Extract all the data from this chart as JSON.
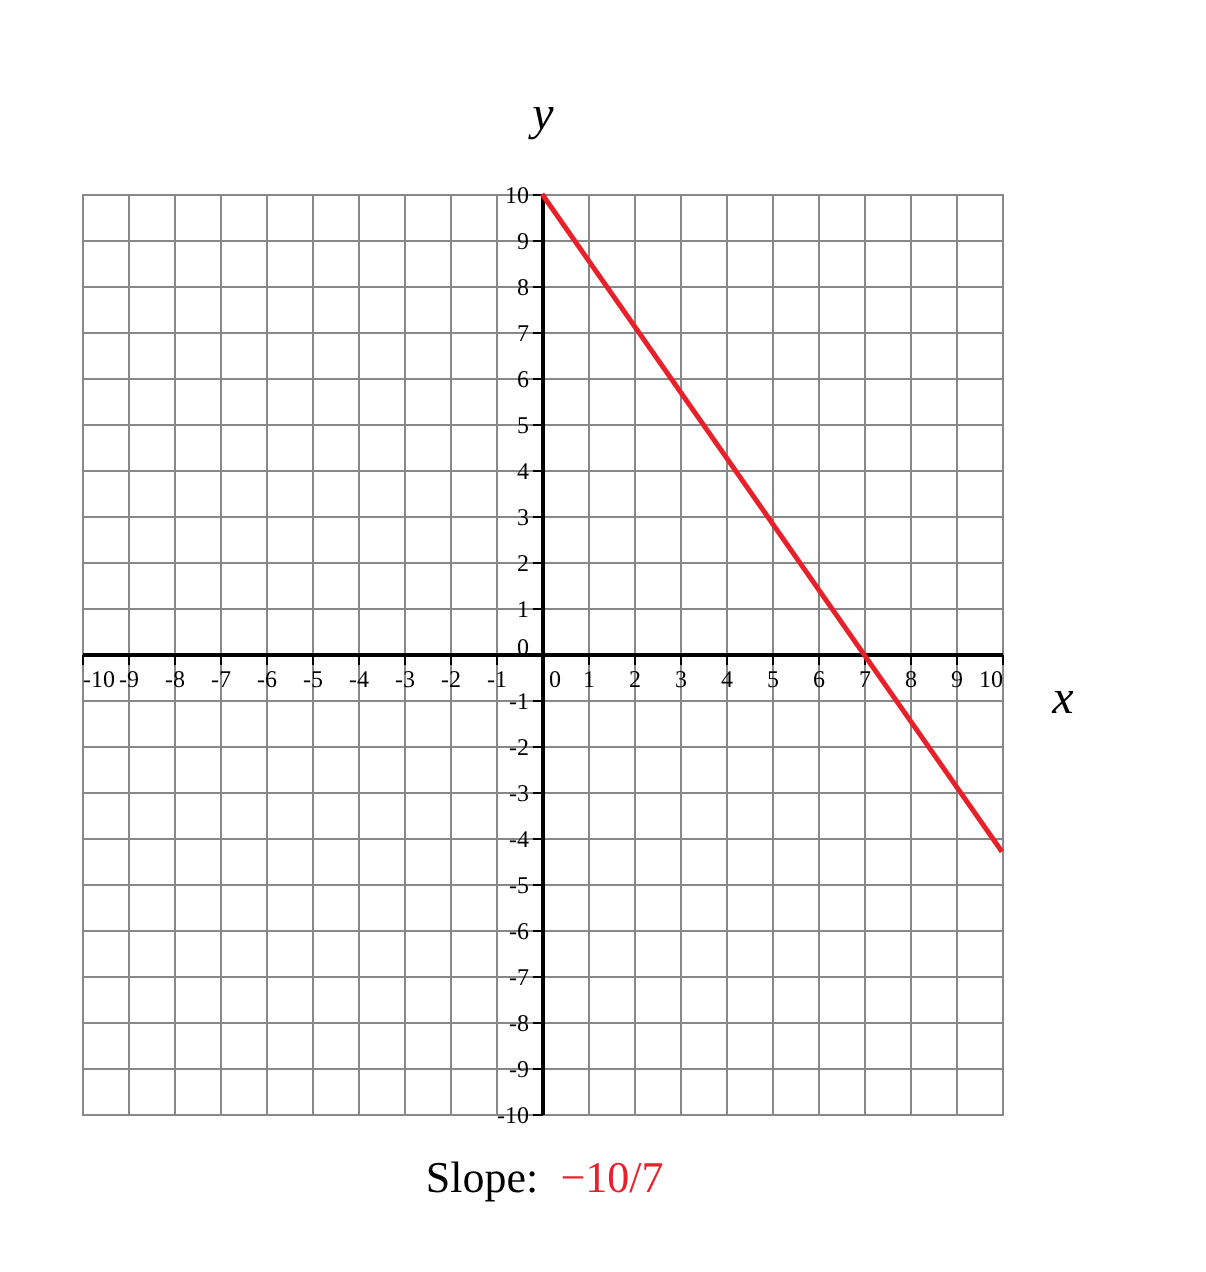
{
  "chart_data": {
    "type": "line",
    "xlabel": "x",
    "ylabel": "y",
    "x": [
      0,
      10
    ],
    "series": [
      {
        "color": "#e8202a",
        "values": [
          10,
          -4.3
        ]
      }
    ],
    "xlim": [
      -10,
      10
    ],
    "ylim": [
      -10,
      10
    ],
    "xticks": [
      -10,
      -9,
      -8,
      -7,
      -6,
      -5,
      -4,
      -3,
      -2,
      -1,
      0,
      1,
      2,
      3,
      4,
      5,
      6,
      7,
      8,
      9,
      10
    ],
    "yticks": [
      -10,
      -9,
      -8,
      -7,
      -6,
      -5,
      -4,
      -3,
      -2,
      -1,
      0,
      1,
      2,
      3,
      4,
      5,
      6,
      7,
      8,
      9,
      10
    ],
    "grid": true,
    "marker": "none",
    "line_style": "solid",
    "annotations": [
      "Slope:",
      "−10/7"
    ]
  }
}
